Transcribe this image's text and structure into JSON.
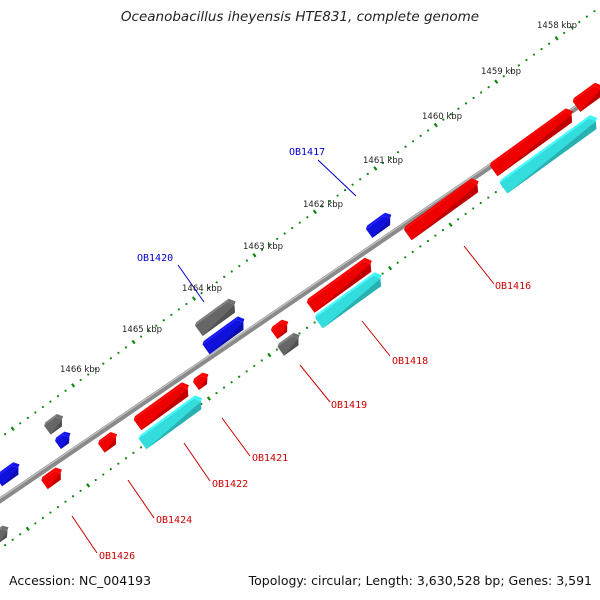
{
  "title": "Oceanobacillus iheyensis HTE831, complete genome",
  "footer": {
    "accession": "Accession: NC_004193",
    "summary": "Topology: circular; Length: 3,630,528 bp; Genes: 3,591"
  },
  "colors": {
    "forward_gene": "#ee0000",
    "reverse_gene": "#1111dd",
    "rna_gene": "#33dddd",
    "other_gene": "#666666",
    "backbone": "#8a8a8a",
    "ticks": "#118811",
    "label_forward": "#cc0000",
    "label_reverse": "#0000cc"
  },
  "scale_labels": [
    "1458 kbp",
    "1459 kbp",
    "1460 kbp",
    "1461 kbp",
    "1462 kbp",
    "1463 kbp",
    "1464 kbp",
    "1465 kbp",
    "1466 kbp"
  ],
  "gene_labels": [
    {
      "name": "OB1417",
      "color": "blue"
    },
    {
      "name": "OB1420",
      "color": "blue"
    },
    {
      "name": "OB1416",
      "color": "red"
    },
    {
      "name": "OB1418",
      "color": "red"
    },
    {
      "name": "OB1419",
      "color": "red"
    },
    {
      "name": "OB1421",
      "color": "red"
    },
    {
      "name": "OB1422",
      "color": "red"
    },
    {
      "name": "OB1424",
      "color": "red"
    },
    {
      "name": "OB1426",
      "color": "red"
    }
  ]
}
